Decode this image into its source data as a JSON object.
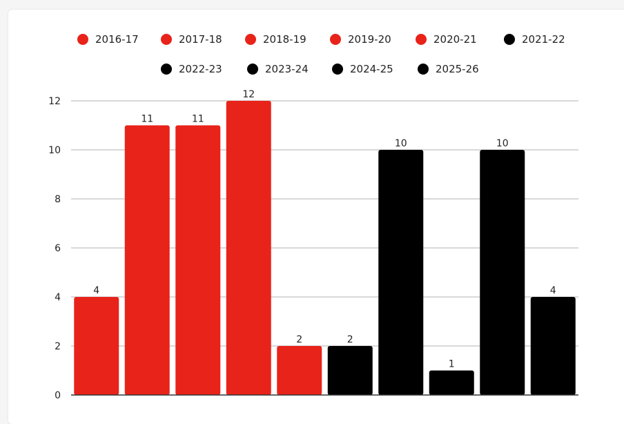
{
  "chart_data": {
    "type": "bar",
    "title": "",
    "xlabel": "",
    "ylabel": "",
    "ylim": [
      0,
      12
    ],
    "yticks": [
      0,
      2,
      4,
      6,
      8,
      10,
      12
    ],
    "grid": true,
    "legend_placement": "top",
    "categories": [
      "2016-17",
      "2017-18",
      "2018-19",
      "2019-20",
      "2020-21",
      "2021-22",
      "2022-23",
      "2023-24",
      "2024-25",
      "2025-26"
    ],
    "values": [
      4,
      11,
      11,
      12,
      2,
      2,
      10,
      1,
      10,
      4
    ],
    "colors": [
      "#e8231a",
      "#e8231a",
      "#e8231a",
      "#e8231a",
      "#e8231a",
      "#000000",
      "#000000",
      "#000000",
      "#000000",
      "#000000"
    ],
    "data_labels": [
      "4",
      "11",
      "11",
      "12",
      "2",
      "2",
      "10",
      "1",
      "10",
      "4"
    ],
    "gridline_color": "#cccccc",
    "axis_color": "#333333"
  }
}
